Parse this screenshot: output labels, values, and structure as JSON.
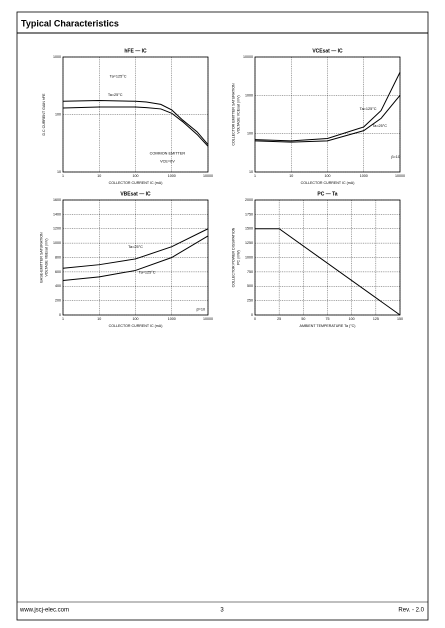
{
  "header": {
    "title": "Typical Characteristics"
  },
  "footer": {
    "website": "www.jscj-elec.com",
    "page": "3",
    "revision": "Rev. - 2.0"
  },
  "chart_data": [
    {
      "type": "line",
      "title": "hFE — IC",
      "xlabel": "COLLECTOR CURRENT  IC  (mA)",
      "ylabel": [
        "D.C CURRENT GAIN  hFE"
      ],
      "xlog": true,
      "ylog": true,
      "grid": true,
      "x": [
        1,
        10,
        100,
        200,
        500,
        1000,
        2000,
        5000,
        10000
      ],
      "xlim": [
        1,
        10000
      ],
      "xticks": [
        1,
        10,
        100,
        1000,
        10000
      ],
      "ylim": [
        10,
        1000
      ],
      "yticks": [
        10,
        100,
        1000
      ],
      "series": [
        {
          "name": "Ta=125°C",
          "color": "#000000",
          "values": [
            170,
            175,
            170,
            165,
            150,
            120,
            80,
            50,
            30
          ]
        },
        {
          "name": "Ta=25°C",
          "color": "#000000",
          "values": [
            130,
            135,
            135,
            132,
            125,
            105,
            75,
            45,
            28
          ]
        }
      ],
      "annotations": [
        "Ta=125°C",
        "Ta=25°C",
        "COMMON EMITTER",
        "VCE=6V"
      ]
    },
    {
      "type": "line",
      "title": "VCEsat — IC",
      "xlabel": "COLLECTOR CURRENT  IC  (mA)",
      "ylabel": [
        "COLLECTOR EMITTER SATURATION",
        "VOLTAGE  VCEsat  (mV)"
      ],
      "xlog": true,
      "ylog": true,
      "grid": true,
      "x": [
        1,
        10,
        100,
        1000,
        3000,
        10000
      ],
      "xlim": [
        1,
        10000
      ],
      "xticks": [
        1,
        10,
        100,
        1000,
        10000
      ],
      "ylim": [
        10,
        10000
      ],
      "yticks": [
        10,
        100,
        1000,
        10000
      ],
      "series": [
        {
          "name": "Ta=125°C",
          "color": "#000000",
          "values": [
            70,
            65,
            75,
            150,
            400,
            4000
          ]
        },
        {
          "name": "Ta=25°C",
          "color": "#000000",
          "values": [
            65,
            60,
            65,
            120,
            250,
            1000
          ]
        }
      ],
      "annotations": [
        "Ta=125°C",
        "Ta=25°C",
        "β=10"
      ]
    },
    {
      "type": "line",
      "title": "VBEsat — IC",
      "xlabel": "COLLECTOR CURRENT  IC  (mA)",
      "ylabel": [
        "BASE-EMITTER SATURATION",
        "VOLTAGE  VBEsat  (mV)"
      ],
      "xlog": true,
      "ylog": false,
      "grid": true,
      "x": [
        1,
        10,
        100,
        1000,
        10000
      ],
      "xlim": [
        1,
        10000
      ],
      "xticks": [
        1,
        10,
        100,
        1000,
        10000
      ],
      "ylim": [
        0,
        1600
      ],
      "yticks": [
        0,
        200,
        400,
        600,
        800,
        1000,
        1200,
        1400,
        1600
      ],
      "series": [
        {
          "name": "Ta=25°C",
          "color": "#000000",
          "values": [
            650,
            700,
            780,
            950,
            1200
          ]
        },
        {
          "name": "Ta=125°C",
          "color": "#000000",
          "values": [
            480,
            530,
            620,
            800,
            1100
          ]
        }
      ],
      "annotations": [
        "Ta=25°C",
        "Ta=125°C",
        "β=10"
      ]
    },
    {
      "type": "line",
      "title": "PC — Ta",
      "xlabel": "AMBIENT TEMPERATURE  Ta  (°C)",
      "ylabel": [
        "COLLECTOR POWER DISSIPATION",
        "PC  (mW)"
      ],
      "xlog": false,
      "ylog": false,
      "grid": true,
      "x": [
        0,
        25,
        150
      ],
      "xlim": [
        0,
        150
      ],
      "xticks": [
        0,
        25,
        50,
        75,
        100,
        125,
        150
      ],
      "ylim": [
        0,
        2000
      ],
      "yticks": [
        0,
        250,
        500,
        750,
        1000,
        1250,
        1500,
        1750,
        2000
      ],
      "series": [
        {
          "name": "PC",
          "color": "#000000",
          "values": [
            1500,
            1500,
            0
          ]
        }
      ],
      "annotations": []
    }
  ]
}
